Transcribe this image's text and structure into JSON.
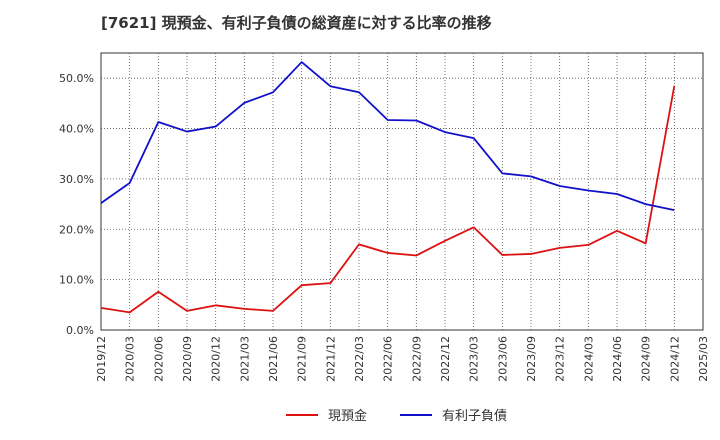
{
  "chart_data": {
    "type": "line",
    "title": "[7621]  現預金、有利子負債の総資産に対する比率の推移",
    "xlabel": "",
    "ylabel": "",
    "ylim": [
      0,
      55
    ],
    "yticks": [
      0,
      10,
      20,
      30,
      40,
      50
    ],
    "ytick_labels": [
      "0.0%",
      "10.0%",
      "20.0%",
      "30.0%",
      "40.0%",
      "50.0%"
    ],
    "categories": [
      "2019/12",
      "2020/03",
      "2020/06",
      "2020/09",
      "2020/12",
      "2021/03",
      "2021/06",
      "2021/09",
      "2021/12",
      "2022/03",
      "2022/06",
      "2022/09",
      "2022/12",
      "2023/03",
      "2023/06",
      "2023/09",
      "2023/12",
      "2024/03",
      "2024/06",
      "2024/09",
      "2024/12",
      "2025/03"
    ],
    "series": [
      {
        "name": "現預金",
        "color": "#dd1111",
        "values": [
          4.4,
          3.5,
          7.6,
          3.8,
          4.9,
          4.2,
          3.8,
          8.9,
          9.3,
          17.0,
          15.3,
          14.8,
          17.7,
          20.4,
          14.9,
          15.1,
          16.3,
          16.9,
          19.7,
          17.2,
          48.5,
          null
        ]
      },
      {
        "name": "有利子負債",
        "color": "#1111cc",
        "values": [
          25.2,
          29.2,
          41.3,
          39.4,
          40.4,
          45.1,
          47.2,
          53.2,
          48.4,
          47.2,
          41.7,
          41.6,
          39.3,
          38.1,
          31.1,
          30.5,
          28.6,
          27.7,
          27.0,
          25.0,
          23.8,
          null
        ]
      }
    ],
    "grid": true,
    "legend": "bottom-center"
  }
}
